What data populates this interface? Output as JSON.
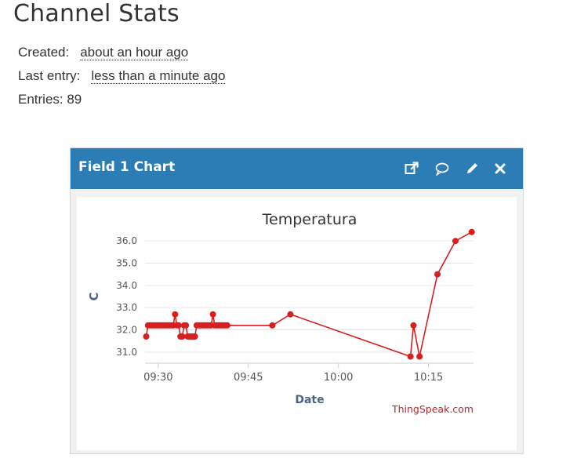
{
  "page": {
    "title": "Channel Stats"
  },
  "stats": {
    "created_label": "Created:",
    "created_value": "about an hour ago",
    "last_entry_label": "Last entry:",
    "last_entry_value": "less than a minute ago",
    "entries_label": "Entries: 89"
  },
  "panel": {
    "title": "Field 1 Chart",
    "icons": [
      "external-link-icon",
      "comment-icon",
      "pencil-icon",
      "close-icon"
    ],
    "header_color": "#2c7cb5"
  },
  "chart_data": {
    "type": "line",
    "title": "Temperatura",
    "xlabel": "Date",
    "ylabel": "C",
    "credit": "ThingSpeak.com",
    "series_color": "#d62020",
    "x_tick_labels": [
      "09:30",
      "09:45",
      "10:00",
      "10:15"
    ],
    "x_ticks_minutes": [
      30,
      45,
      60,
      75
    ],
    "xlim_minutes": [
      27.8,
      82.5
    ],
    "y_tick_labels": [
      "31.0",
      "32.0",
      "33.0",
      "34.0",
      "35.0",
      "36.0"
    ],
    "y_ticks": [
      31,
      32,
      33,
      34,
      35,
      36
    ],
    "ylim": [
      30.5,
      36.5
    ],
    "grid": true,
    "x_minutes": [
      28.0,
      28.3,
      28.6,
      28.9,
      29.2,
      29.5,
      29.8,
      30.1,
      30.4,
      30.7,
      31.0,
      31.3,
      31.6,
      31.9,
      32.2,
      32.5,
      32.8,
      33.1,
      33.4,
      33.7,
      34.0,
      34.3,
      34.6,
      34.9,
      35.2,
      35.5,
      35.8,
      36.1,
      36.4,
      36.7,
      37.0,
      37.3,
      37.6,
      37.9,
      38.2,
      38.5,
      38.8,
      39.1,
      39.4,
      39.7,
      40.0,
      40.3,
      40.6,
      40.9,
      41.2,
      41.5,
      49.0,
      52.0,
      72.0,
      72.5,
      73.5,
      76.5,
      79.5,
      82.2
    ],
    "y": [
      31.7,
      32.2,
      32.2,
      32.2,
      32.2,
      32.2,
      32.2,
      32.2,
      32.2,
      32.2,
      32.2,
      32.2,
      32.2,
      32.2,
      32.2,
      32.2,
      32.7,
      32.2,
      32.2,
      31.7,
      31.7,
      32.2,
      32.2,
      31.7,
      31.7,
      31.7,
      31.7,
      31.7,
      32.2,
      32.2,
      32.2,
      32.2,
      32.2,
      32.2,
      32.2,
      32.2,
      32.2,
      32.7,
      32.2,
      32.2,
      32.2,
      32.2,
      32.2,
      32.2,
      32.2,
      32.2,
      32.2,
      32.7,
      30.8,
      32.2,
      30.8,
      34.5,
      36.0,
      36.4
    ]
  }
}
